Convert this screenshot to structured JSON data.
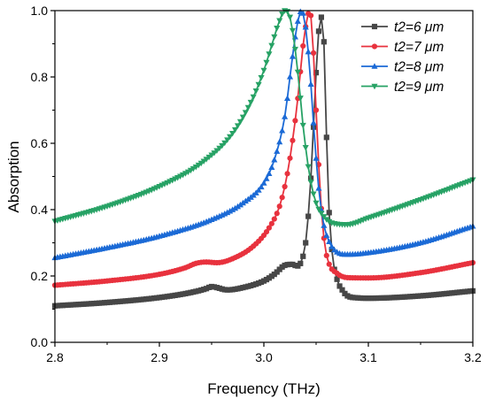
{
  "chart_data": {
    "type": "line",
    "title": "",
    "xlabel": "Frequency (THz)",
    "ylabel": "Absorption",
    "xlim": [
      2.8,
      3.2
    ],
    "ylim": [
      0.0,
      1.0
    ],
    "x_ticks": [
      "2.8",
      "2.9",
      "3.0",
      "3.1",
      "3.2"
    ],
    "y_ticks": [
      "0.0",
      "0.2",
      "0.4",
      "0.6",
      "0.8",
      "1.0"
    ],
    "grid": false,
    "legend_position": "top-right",
    "series": [
      {
        "name": "t2=6 μm",
        "color": "#474747",
        "marker": "square",
        "x": [
          2.8,
          2.85,
          2.9,
          2.93,
          2.945,
          2.95,
          2.955,
          2.965,
          2.98,
          3.0,
          3.01,
          3.02,
          3.027,
          3.032,
          3.036,
          3.04,
          3.043,
          3.046,
          3.049,
          3.052,
          3.055,
          3.058,
          3.061,
          3.065,
          3.07,
          3.075,
          3.08,
          3.09,
          3.1,
          3.15,
          3.2
        ],
        "y": [
          0.11,
          0.12,
          0.135,
          0.15,
          0.162,
          0.168,
          0.165,
          0.158,
          0.165,
          0.185,
          0.205,
          0.232,
          0.235,
          0.23,
          0.245,
          0.3,
          0.4,
          0.55,
          0.75,
          0.92,
          0.98,
          0.87,
          0.5,
          0.28,
          0.19,
          0.158,
          0.14,
          0.134,
          0.133,
          0.14,
          0.155
        ]
      },
      {
        "name": "t2=7 μm",
        "color": "#e8323e",
        "marker": "circle",
        "x": [
          2.8,
          2.85,
          2.9,
          2.925,
          2.935,
          2.945,
          2.955,
          2.97,
          2.99,
          3.005,
          3.015,
          3.022,
          3.028,
          3.033,
          3.037,
          3.041,
          3.044,
          3.047,
          3.05,
          3.054,
          3.058,
          3.062,
          3.07,
          3.08,
          3.1,
          3.15,
          3.2
        ],
        "y": [
          0.172,
          0.185,
          0.205,
          0.225,
          0.238,
          0.242,
          0.24,
          0.252,
          0.29,
          0.345,
          0.41,
          0.5,
          0.62,
          0.75,
          0.88,
          0.97,
          1.0,
          0.9,
          0.7,
          0.45,
          0.3,
          0.24,
          0.208,
          0.195,
          0.194,
          0.21,
          0.24
        ]
      },
      {
        "name": "t2=8 μm",
        "color": "#1b6ad6",
        "marker": "triangle-up",
        "x": [
          2.8,
          2.85,
          2.9,
          2.95,
          2.98,
          3.0,
          3.01,
          3.02,
          3.027,
          3.032,
          3.036,
          3.04,
          3.044,
          3.048,
          3.052,
          3.057,
          3.063,
          3.07,
          3.08,
          3.1,
          3.15,
          3.2
        ],
        "y": [
          0.255,
          0.285,
          0.32,
          0.37,
          0.42,
          0.48,
          0.55,
          0.68,
          0.85,
          0.96,
          1.0,
          0.95,
          0.82,
          0.64,
          0.48,
          0.36,
          0.3,
          0.272,
          0.265,
          0.27,
          0.3,
          0.35
        ]
      },
      {
        "name": "t2=9 μm",
        "color": "#27a265",
        "marker": "triangle-down",
        "x": [
          2.8,
          2.85,
          2.9,
          2.94,
          2.97,
          2.99,
          3.0,
          3.008,
          3.015,
          3.02,
          3.024,
          3.028,
          3.033,
          3.038,
          3.044,
          3.05,
          3.056,
          3.065,
          3.08,
          3.1,
          3.15,
          3.2
        ],
        "y": [
          0.365,
          0.41,
          0.47,
          0.54,
          0.63,
          0.74,
          0.82,
          0.9,
          0.97,
          1.0,
          0.99,
          0.93,
          0.8,
          0.64,
          0.5,
          0.42,
          0.385,
          0.36,
          0.355,
          0.375,
          0.43,
          0.49
        ]
      }
    ]
  }
}
